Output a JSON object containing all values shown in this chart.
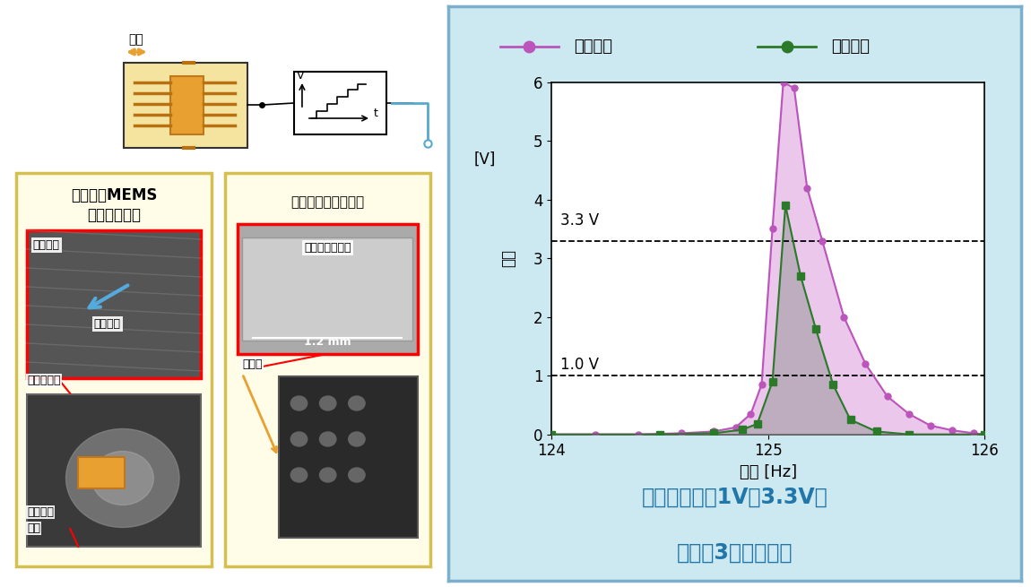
{
  "purple_x": [
    124.0,
    124.2,
    124.4,
    124.6,
    124.75,
    124.85,
    124.92,
    124.97,
    125.02,
    125.07,
    125.12,
    125.18,
    125.25,
    125.35,
    125.45,
    125.55,
    125.65,
    125.75,
    125.85,
    125.95,
    126.0
  ],
  "purple_y": [
    0.0,
    0.0,
    0.0,
    0.02,
    0.05,
    0.12,
    0.35,
    0.85,
    3.5,
    6.0,
    5.9,
    4.2,
    3.3,
    2.0,
    1.2,
    0.65,
    0.35,
    0.15,
    0.07,
    0.02,
    0.0
  ],
  "green_x": [
    124.0,
    124.5,
    124.75,
    124.88,
    124.95,
    125.02,
    125.08,
    125.15,
    125.22,
    125.3,
    125.38,
    125.5,
    125.65,
    126.0
  ],
  "green_y": [
    0.0,
    0.0,
    0.02,
    0.08,
    0.18,
    0.9,
    3.9,
    2.7,
    1.8,
    0.85,
    0.25,
    0.05,
    0.0,
    0.0
  ],
  "xlim": [
    124,
    126
  ],
  "ylim": [
    0,
    6
  ],
  "xticks": [
    124,
    125,
    126
  ],
  "yticks": [
    0,
    1,
    2,
    3,
    4,
    5,
    6
  ],
  "hline_33": 3.3,
  "hline_10": 1.0,
  "label_33": "3.3 V",
  "label_10": "1.0 V",
  "xlabel": "频率 [Hz]",
  "ylabel": "電圧",
  "ylabel2": "[V]",
  "legend_purple": "建議技术",
  "legend_green": "以往技术",
  "bottom_text1": "以期望電壓（1V～3.3V）",
  "bottom_text2": "實現約3倍的大帶寬",
  "purple_line_color": "#bb55bb",
  "purple_fill_color": "#dd99dd",
  "purple_fill_alpha": 0.55,
  "green_line_color": "#2a7a2a",
  "green_fill_color": "#999999",
  "green_fill_alpha": 0.55,
  "title_color": "#2277aa",
  "panel_bg": "#cce8f0",
  "panel_border": "#7ab0cc",
  "left_title1": "駕極體式MEMS",
  "left_title2": "振動發電元件",
  "right_panel_title": "低閾値整流升壓電路",
  "label_guding": "固定電極",
  "label_huodong": "活動電極",
  "label_zhenshi": "振動測試儀",
  "label_fadian1": "振動發電",
  "label_fadian2": "設備",
  "label_chip": "試制的電路芯片",
  "label_eval": "評估板",
  "label_zhendong": "振動",
  "label_12mm": "1.2 mm"
}
